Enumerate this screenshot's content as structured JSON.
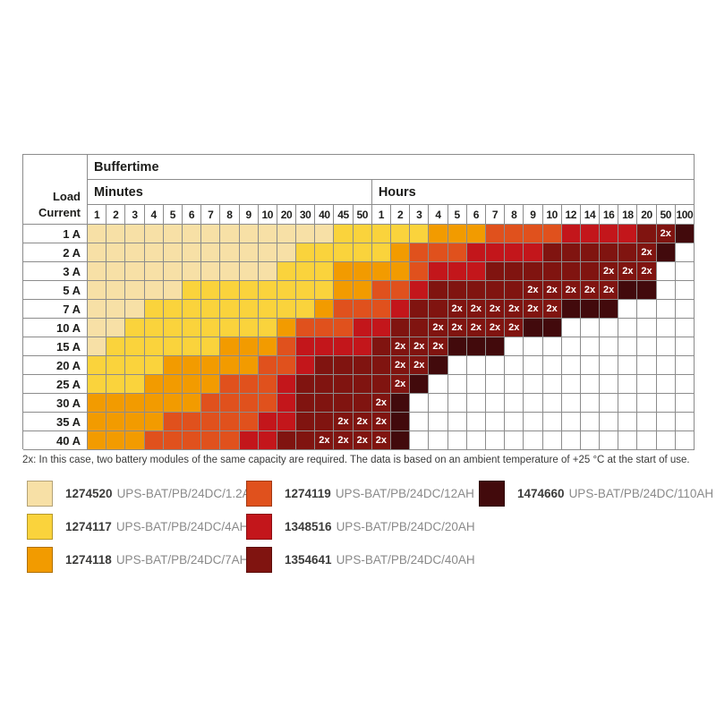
{
  "chart_data": {
    "type": "heatmap",
    "title": "Buffertime",
    "x_groups": [
      {
        "label": "Minutes",
        "ticks": [
          "1",
          "2",
          "3",
          "4",
          "5",
          "6",
          "7",
          "8",
          "9",
          "10",
          "20",
          "30",
          "40",
          "45",
          "50"
        ]
      },
      {
        "label": "Hours",
        "ticks": [
          "1",
          "2",
          "3",
          "4",
          "5",
          "6",
          "7",
          "8",
          "9",
          "10",
          "12",
          "14",
          "16",
          "18",
          "20",
          "50",
          "100"
        ]
      }
    ],
    "y_label": [
      "Load",
      "Current"
    ],
    "y_ticks": [
      "1 A",
      "2 A",
      "3 A",
      "5 A",
      "7 A",
      "10 A",
      "15 A",
      "20 A",
      "25 A",
      "30 A",
      "35 A",
      "40 A"
    ],
    "code_map": {
      "A": "1274520 UPS-BAT/PB/24DC/1.2AH",
      "B": "1274117 UPS-BAT/PB/24DC/4AH",
      "C": "1274118 UPS-BAT/PB/24DC/7AH",
      "D": "1274119 UPS-BAT/PB/24DC/12AH",
      "E": "1348516 UPS-BAT/PB/24DC/20AH",
      "F": "1354641 UPS-BAT/PB/24DC/40AH",
      "F2": "2x 1354641 UPS-BAT/PB/24DC/40AH",
      "G": "1474660 UPS-BAT/PB/24DC/110AH",
      "W": ""
    },
    "matrix": [
      [
        "A",
        "A",
        "A",
        "A",
        "A",
        "A",
        "A",
        "A",
        "A",
        "A",
        "A",
        "A",
        "A",
        "B",
        "B",
        "B",
        "B",
        "B",
        "C",
        "C",
        "C",
        "D",
        "D",
        "D",
        "D",
        "E",
        "E",
        "E",
        "E",
        "F",
        "F2",
        "G"
      ],
      [
        "A",
        "A",
        "A",
        "A",
        "A",
        "A",
        "A",
        "A",
        "A",
        "A",
        "A",
        "B",
        "B",
        "B",
        "B",
        "B",
        "C",
        "D",
        "D",
        "D",
        "E",
        "E",
        "E",
        "E",
        "F",
        "F",
        "F",
        "F",
        "F",
        "F2",
        "G",
        "W"
      ],
      [
        "A",
        "A",
        "A",
        "A",
        "A",
        "A",
        "A",
        "A",
        "A",
        "A",
        "B",
        "B",
        "B",
        "C",
        "C",
        "C",
        "C",
        "D",
        "E",
        "E",
        "E",
        "F",
        "F",
        "F",
        "F",
        "F",
        "F",
        "F2",
        "F2",
        "F2",
        "W",
        "W"
      ],
      [
        "A",
        "A",
        "A",
        "A",
        "A",
        "B",
        "B",
        "B",
        "B",
        "B",
        "B",
        "B",
        "B",
        "C",
        "C",
        "D",
        "D",
        "E",
        "F",
        "F",
        "F",
        "F",
        "F",
        "F2",
        "F2",
        "F2",
        "F2",
        "F2",
        "G",
        "G",
        "W",
        "W"
      ],
      [
        "A",
        "A",
        "A",
        "B",
        "B",
        "B",
        "B",
        "B",
        "B",
        "B",
        "B",
        "B",
        "C",
        "D",
        "D",
        "D",
        "E",
        "F",
        "F",
        "F2",
        "F2",
        "F2",
        "F2",
        "F2",
        "F2",
        "G",
        "G",
        "G",
        "W",
        "W",
        "W",
        "W"
      ],
      [
        "A",
        "A",
        "B",
        "B",
        "B",
        "B",
        "B",
        "B",
        "B",
        "B",
        "C",
        "D",
        "D",
        "D",
        "E",
        "E",
        "F",
        "F",
        "F2",
        "F2",
        "F2",
        "F2",
        "F2",
        "G",
        "G",
        "W",
        "W",
        "W",
        "W",
        "W",
        "W",
        "W"
      ],
      [
        "A",
        "B",
        "B",
        "B",
        "B",
        "B",
        "B",
        "C",
        "C",
        "C",
        "D",
        "E",
        "E",
        "E",
        "E",
        "F",
        "F2",
        "F2",
        "F2",
        "G",
        "G",
        "G",
        "W",
        "W",
        "W",
        "W",
        "W",
        "W",
        "W",
        "W",
        "W",
        "W"
      ],
      [
        "B",
        "B",
        "B",
        "B",
        "C",
        "C",
        "C",
        "C",
        "C",
        "D",
        "D",
        "E",
        "F",
        "F",
        "F",
        "F",
        "F2",
        "F2",
        "G",
        "W",
        "W",
        "W",
        "W",
        "W",
        "W",
        "W",
        "W",
        "W",
        "W",
        "W",
        "W",
        "W"
      ],
      [
        "B",
        "B",
        "B",
        "C",
        "C",
        "C",
        "C",
        "D",
        "D",
        "D",
        "E",
        "F",
        "F",
        "F",
        "F",
        "F",
        "F2",
        "G",
        "W",
        "W",
        "W",
        "W",
        "W",
        "W",
        "W",
        "W",
        "W",
        "W",
        "W",
        "W",
        "W",
        "W"
      ],
      [
        "C",
        "C",
        "C",
        "C",
        "C",
        "C",
        "D",
        "D",
        "D",
        "D",
        "E",
        "F",
        "F",
        "F",
        "F",
        "F2",
        "G",
        "W",
        "W",
        "W",
        "W",
        "W",
        "W",
        "W",
        "W",
        "W",
        "W",
        "W",
        "W",
        "W",
        "W",
        "W"
      ],
      [
        "C",
        "C",
        "C",
        "C",
        "D",
        "D",
        "D",
        "D",
        "D",
        "E",
        "E",
        "F",
        "F",
        "F2",
        "F2",
        "F2",
        "G",
        "W",
        "W",
        "W",
        "W",
        "W",
        "W",
        "W",
        "W",
        "W",
        "W",
        "W",
        "W",
        "W",
        "W",
        "W"
      ],
      [
        "C",
        "C",
        "C",
        "D",
        "D",
        "D",
        "D",
        "D",
        "E",
        "E",
        "F",
        "F",
        "F2",
        "F2",
        "F2",
        "F2",
        "G",
        "W",
        "W",
        "W",
        "W",
        "W",
        "W",
        "W",
        "W",
        "W",
        "W",
        "W",
        "W",
        "W",
        "W",
        "W"
      ]
    ]
  },
  "colors": {
    "A": "#F7E0A6",
    "B": "#FAD33C",
    "C": "#F29B00",
    "D": "#E0511D",
    "E": "#C3161B",
    "F": "#801410",
    "G": "#420A0C",
    "W": "#FFFFFF",
    "grid_line": "#8C8C8C"
  },
  "two_x_label": "2x",
  "footnote": "2x: In this case, two battery modules of the same capacity are required.  The data is based on an ambient temperature of +25 °C at the start of use.",
  "legend": {
    "columns": [
      [
        {
          "id": "1274520",
          "desc": "UPS-BAT/PB/24DC/1.2AH",
          "color": "A"
        },
        {
          "id": "1274117",
          "desc": "UPS-BAT/PB/24DC/4AH",
          "color": "B"
        },
        {
          "id": "1274118",
          "desc": "UPS-BAT/PB/24DC/7AH",
          "color": "C"
        }
      ],
      [
        {
          "id": "1274119",
          "desc": "UPS-BAT/PB/24DC/12AH",
          "color": "D"
        },
        {
          "id": "1348516",
          "desc": "UPS-BAT/PB/24DC/20AH",
          "color": "E"
        },
        {
          "id": "1354641",
          "desc": "UPS-BAT/PB/24DC/40AH",
          "color": "F"
        }
      ],
      [
        {
          "id": "1474660",
          "desc": "UPS-BAT/PB/24DC/110AH",
          "color": "G"
        }
      ]
    ]
  }
}
